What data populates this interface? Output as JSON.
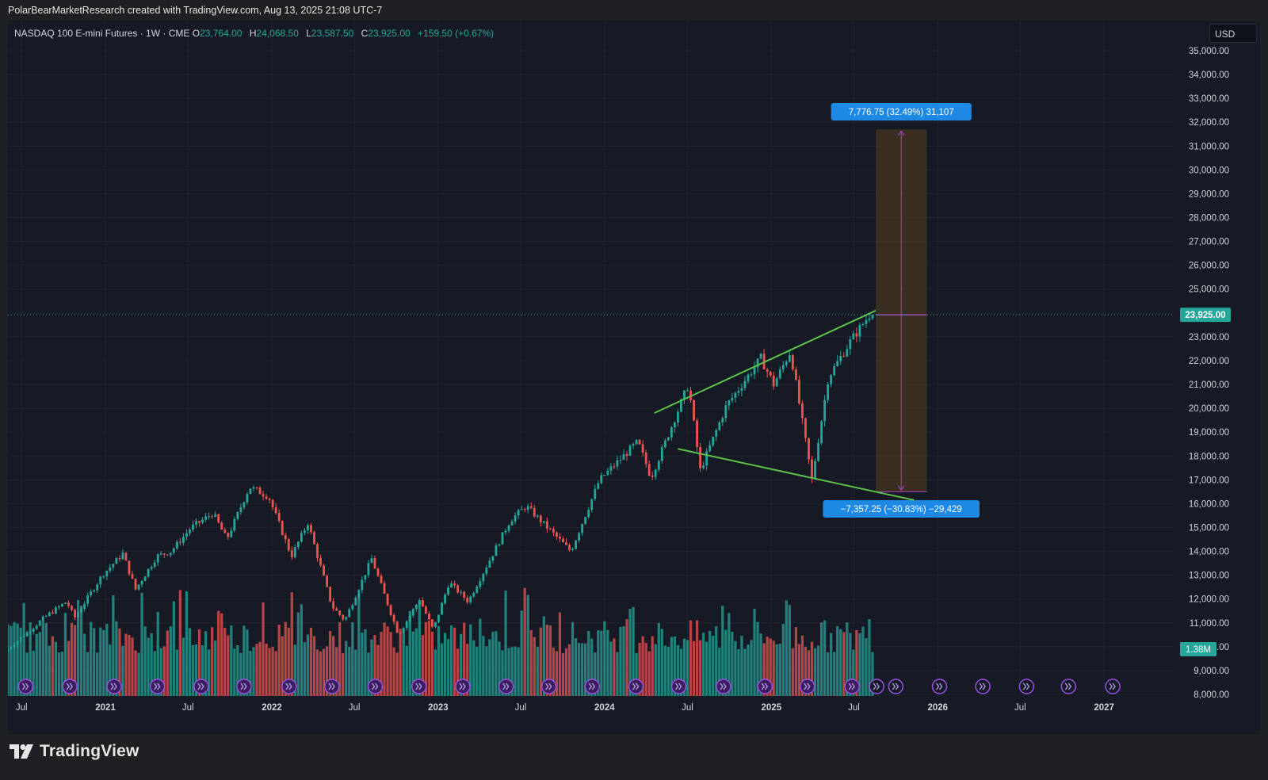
{
  "header": {
    "text": "PolarBearMarketResearch created with TradingView.com, Aug 13, 2025 21:08 UTC-7"
  },
  "legend": {
    "symbol": "NASDAQ 100 E-mini Futures · 1W · CME",
    "open_label": "O",
    "open": "23,764.00",
    "high_label": "H",
    "high": "24,068.50",
    "low_label": "L",
    "low": "23,587.50",
    "close_label": "C",
    "close": "23,925.00",
    "change": "+159.50 (+0.67%)"
  },
  "currency": "USD",
  "brand": {
    "name": "TradingView"
  },
  "colors": {
    "up": "#26a69a",
    "down": "#ef5350",
    "trendline": "#5dc04b",
    "measure": "#ab47bc",
    "label_bg": "#1e88e5",
    "price_tag": "#26a69a"
  },
  "chart_data": {
    "type": "candlestick",
    "timeframe": "1W",
    "ylim": [
      8000,
      35500
    ],
    "y_ticks": [
      "35,000.00",
      "34,000.00",
      "33,000.00",
      "32,000.00",
      "31,000.00",
      "30,000.00",
      "29,000.00",
      "28,000.00",
      "27,000.00",
      "26,000.00",
      "25,000.00",
      "24,000.00",
      "23,000.00",
      "22,000.00",
      "21,000.00",
      "20,000.00",
      "19,000.00",
      "18,000.00",
      "17,000.00",
      "16,000.00",
      "15,000.00",
      "14,000.00",
      "13,000.00",
      "12,000.00",
      "11,000.00",
      "10,000.00",
      "9,000.00",
      "8,000.00"
    ],
    "x_ticks": [
      "Jul",
      "2021",
      "Jul",
      "2022",
      "Jul",
      "2023",
      "Jul",
      "2024",
      "Jul",
      "2025",
      "Jul",
      "2026",
      "Jul",
      "2027"
    ],
    "price_path": [
      [
        "2020-06-01",
        9800
      ],
      [
        "2020-09-01",
        11300
      ],
      [
        "2020-10-15",
        11900
      ],
      [
        "2020-11-01",
        11200
      ],
      [
        "2021-01-01",
        13000
      ],
      [
        "2021-02-15",
        13900
      ],
      [
        "2021-03-15",
        12400
      ],
      [
        "2021-05-01",
        13800
      ],
      [
        "2021-06-01",
        14000
      ],
      [
        "2021-07-15",
        15000
      ],
      [
        "2021-09-01",
        15600
      ],
      [
        "2021-10-01",
        14500
      ],
      [
        "2021-11-20",
        16700
      ],
      [
        "2022-01-01",
        16300
      ],
      [
        "2022-02-20",
        13800
      ],
      [
        "2022-03-28",
        15200
      ],
      [
        "2022-05-20",
        11700
      ],
      [
        "2022-06-17",
        11100
      ],
      [
        "2022-08-15",
        13700
      ],
      [
        "2022-10-13",
        10500
      ],
      [
        "2022-11-28",
        12000
      ],
      [
        "2022-12-28",
        10700
      ],
      [
        "2023-02-01",
        12700
      ],
      [
        "2023-03-15",
        11900
      ],
      [
        "2023-06-15",
        15300
      ],
      [
        "2023-07-20",
        15900
      ],
      [
        "2023-10-26",
        14000
      ],
      [
        "2023-12-28",
        17000
      ],
      [
        "2024-03-21",
        18600
      ],
      [
        "2024-04-19",
        17100
      ],
      [
        "2024-07-10",
        21000
      ],
      [
        "2024-08-05",
        17400
      ],
      [
        "2024-10-01",
        20100
      ],
      [
        "2024-12-16",
        22100
      ],
      [
        "2025-01-13",
        21000
      ],
      [
        "2025-02-19",
        22400
      ],
      [
        "2025-04-07",
        17000
      ],
      [
        "2025-05-13",
        21300
      ],
      [
        "2025-06-30",
        22800
      ],
      [
        "2025-08-11",
        23925
      ]
    ],
    "volume_max_label": "1.38M",
    "last_price": "23,925.00",
    "trendlines": [
      {
        "name": "upper",
        "from": [
          "2024-04-19",
          19800
        ],
        "to": [
          "2025-08-18",
          24100
        ]
      },
      {
        "name": "lower",
        "from": [
          "2024-06-10",
          18300
        ],
        "to": [
          "2025-11-10",
          16150
        ]
      }
    ],
    "projection": {
      "from": "2025-08-18",
      "to": "2025-12-08",
      "top": 31700,
      "bottom": 16500,
      "entry": 23925,
      "up_label": "7,776.75 (32.49%) 31,107",
      "down_label": "−7,357.25 (−30.83%) −29,429"
    }
  }
}
